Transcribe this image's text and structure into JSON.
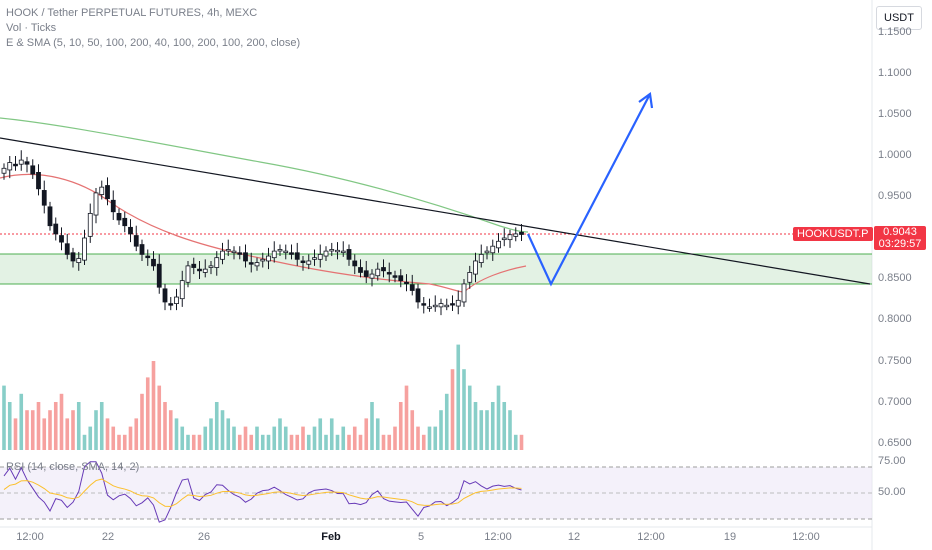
{
  "legend": {
    "title": "HOOK / Tether PERPETUAL FUTURES, 4h, MEXC",
    "volume": "Vol · Ticks",
    "sma": "E & SMA (5, 10, 50, 100, 200, 40, 100, 200, 100, 200, close)"
  },
  "currency": "USDT",
  "symbol_tag": "HOOKUSDT.P",
  "price_tag": {
    "price": "0.9043",
    "countdown": "03:29:57"
  },
  "rsi_label": "RSI (14, close, SMA, 14, 2)",
  "price_axis": [
    "1.1500",
    "1.1000",
    "1.0500",
    "1.0000",
    "0.9500",
    "0.8500",
    "0.8000",
    "0.7500",
    "0.7000",
    "0.6500"
  ],
  "rsi_axis": [
    "75.00",
    "50.00"
  ],
  "time_axis": [
    "12:00",
    "22",
    "26",
    "Feb",
    "5",
    "12:00",
    "12",
    "12:00",
    "19",
    "12:00"
  ],
  "colors": {
    "bull": "#26a69a",
    "bear": "#ef5350",
    "projection": "#2962ff",
    "accent": "#f23645"
  },
  "chart_data": {
    "type": "candlestick",
    "close": [
      0.985,
      0.992,
      0.988,
      0.995,
      0.99,
      0.978,
      0.96,
      0.94,
      0.915,
      0.905,
      0.895,
      0.88,
      0.872,
      0.875,
      0.9,
      0.93,
      0.955,
      0.962,
      0.948,
      0.932,
      0.922,
      0.915,
      0.905,
      0.89,
      0.88,
      0.876,
      0.866,
      0.84,
      0.822,
      0.818,
      0.828,
      0.848,
      0.866,
      0.864,
      0.86,
      0.862,
      0.866,
      0.876,
      0.884,
      0.886,
      0.884,
      0.88,
      0.872,
      0.868,
      0.87,
      0.874,
      0.878,
      0.884,
      0.886,
      0.884,
      0.88,
      0.874,
      0.87,
      0.872,
      0.876,
      0.88,
      0.884,
      0.886,
      0.885,
      0.884,
      0.874,
      0.866,
      0.858,
      0.853,
      0.856,
      0.862,
      0.86,
      0.856,
      0.852,
      0.848,
      0.845,
      0.836,
      0.822,
      0.818,
      0.816,
      0.818,
      0.82,
      0.818,
      0.819,
      0.824,
      0.844,
      0.858,
      0.872,
      0.88,
      0.884,
      0.89,
      0.896,
      0.9,
      0.904,
      0.905,
      0.9043
    ],
    "volume": [
      0.72,
      0.7,
      0.68,
      0.71,
      0.69,
      0.69,
      0.7,
      0.68,
      0.69,
      0.7,
      0.71,
      0.68,
      0.69,
      0.7,
      0.66,
      0.67,
      0.69,
      0.7,
      0.68,
      0.67,
      0.66,
      0.66,
      0.67,
      0.68,
      0.71,
      0.73,
      0.75,
      0.72,
      0.7,
      0.69,
      0.68,
      0.67,
      0.66,
      0.66,
      0.66,
      0.67,
      0.68,
      0.7,
      0.69,
      0.68,
      0.67,
      0.66,
      0.67,
      0.66,
      0.67,
      0.66,
      0.66,
      0.67,
      0.68,
      0.67,
      0.66,
      0.66,
      0.67,
      0.66,
      0.67,
      0.68,
      0.66,
      0.68,
      0.66,
      0.67,
      0.66,
      0.67,
      0.66,
      0.68,
      0.7,
      0.68,
      0.66,
      0.66,
      0.67,
      0.7,
      0.72,
      0.69,
      0.67,
      0.66,
      0.67,
      0.67,
      0.69,
      0.71,
      0.74,
      0.77,
      0.74,
      0.72,
      0.7,
      0.69,
      0.69,
      0.7,
      0.72,
      0.7,
      0.69,
      0.66,
      0.66
    ],
    "resistance_line": [
      [
        0,
        1.012
      ],
      [
        1,
        0.845
      ]
    ],
    "support_zone": [
      0.847,
      0.882
    ],
    "projection": [
      0.9043,
      0.845,
      1.075
    ],
    "rsi_range": [
      25,
      75
    ],
    "ylim": [
      0.64,
      1.16
    ]
  }
}
